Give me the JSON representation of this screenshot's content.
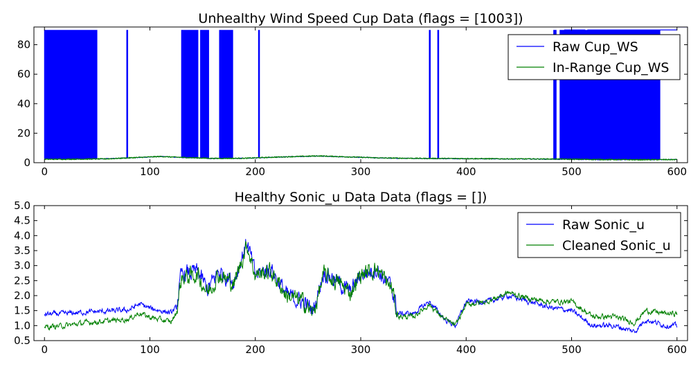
{
  "chart_data": [
    {
      "type": "line",
      "title": "Unhealthy Wind Speed Cup Data (flags = [1003])",
      "xlabel": "",
      "ylabel": "",
      "xlim": [
        -10,
        610
      ],
      "ylim": [
        0,
        92
      ],
      "xticks": [
        0,
        100,
        200,
        300,
        400,
        500,
        600
      ],
      "yticks": [
        0,
        20,
        40,
        60,
        80
      ],
      "legend_position": "top-right",
      "grid": false,
      "series": [
        {
          "name": "Raw Cup_WS",
          "color": "#0000ff",
          "baseline": [
            [
              0,
              2.5
            ],
            [
              50,
              2.5
            ],
            [
              90,
              3.5
            ],
            [
              110,
              4.2
            ],
            [
              130,
              3.5
            ],
            [
              160,
              2.8
            ],
            [
              200,
              3.2
            ],
            [
              230,
              4.0
            ],
            [
              260,
              4.5
            ],
            [
              290,
              3.8
            ],
            [
              330,
              3.0
            ],
            [
              380,
              2.8
            ],
            [
              420,
              2.6
            ],
            [
              460,
              2.5
            ],
            [
              500,
              2.2
            ],
            [
              540,
              2.0
            ],
            [
              580,
              2.1
            ],
            [
              600,
              2.2
            ]
          ],
          "spike_value": 90,
          "spike_ranges": [
            [
              0,
              50
            ],
            [
              78,
              79
            ],
            [
              130,
              146
            ],
            [
              148,
              156
            ],
            [
              166,
              179
            ],
            [
              203,
              204
            ],
            [
              365,
              366
            ],
            [
              373,
              374
            ],
            [
              483,
              486
            ],
            [
              489,
              584
            ]
          ],
          "flat_segments": [
            [
              [
                493,
                90
              ],
              [
                513,
                90
              ]
            ],
            [
              [
                515,
                90
              ],
              [
                600,
                90
              ]
            ],
            [
              [
                600,
                92
              ],
              [
                610,
                92
              ]
            ]
          ]
        },
        {
          "name": "In-Range Cup_WS",
          "color": "#008000",
          "points": [
            [
              0,
              2.3
            ],
            [
              30,
              2.4
            ],
            [
              60,
              2.6
            ],
            [
              90,
              3.6
            ],
            [
              110,
              4.2
            ],
            [
              130,
              3.6
            ],
            [
              160,
              2.9
            ],
            [
              190,
              3.0
            ],
            [
              220,
              3.8
            ],
            [
              260,
              4.6
            ],
            [
              290,
              3.9
            ],
            [
              320,
              3.2
            ],
            [
              360,
              2.9
            ],
            [
              400,
              2.8
            ],
            [
              440,
              2.6
            ],
            [
              480,
              2.5
            ],
            [
              520,
              2.2
            ],
            [
              560,
              2.0
            ],
            [
              600,
              2.1
            ]
          ]
        }
      ]
    },
    {
      "type": "line",
      "title": "Healthy Sonic_u Data Data (flags = [])",
      "xlabel": "",
      "ylabel": "",
      "xlim": [
        -10,
        610
      ],
      "ylim": [
        0.5,
        5.0
      ],
      "xticks": [
        0,
        100,
        200,
        300,
        400,
        500,
        600
      ],
      "yticks": [
        0.5,
        1.0,
        1.5,
        2.0,
        2.5,
        3.0,
        3.5,
        4.0,
        4.5,
        5.0
      ],
      "legend_position": "top-right",
      "grid": false,
      "series": [
        {
          "name": "Raw Sonic_u",
          "color": "#0000ff",
          "points": [
            [
              0,
              1.38
            ],
            [
              20,
              1.4
            ],
            [
              40,
              1.45
            ],
            [
              60,
              1.48
            ],
            [
              80,
              1.52
            ],
            [
              90,
              1.72
            ],
            [
              100,
              1.58
            ],
            [
              120,
              1.42
            ],
            [
              125,
              1.6
            ],
            [
              130,
              2.7
            ],
            [
              145,
              2.8
            ],
            [
              155,
              2.2
            ],
            [
              165,
              2.8
            ],
            [
              180,
              2.5
            ],
            [
              192,
              3.8
            ],
            [
              200,
              2.7
            ],
            [
              215,
              2.9
            ],
            [
              230,
              2.0
            ],
            [
              245,
              1.8
            ],
            [
              255,
              1.5
            ],
            [
              265,
              2.8
            ],
            [
              280,
              2.4
            ],
            [
              290,
              2.1
            ],
            [
              300,
              2.7
            ],
            [
              315,
              2.9
            ],
            [
              330,
              2.2
            ],
            [
              335,
              1.4
            ],
            [
              350,
              1.4
            ],
            [
              365,
              1.8
            ],
            [
              380,
              1.2
            ],
            [
              390,
              1.0
            ],
            [
              400,
              1.8
            ],
            [
              420,
              1.8
            ],
            [
              440,
              2.0
            ],
            [
              460,
              1.8
            ],
            [
              480,
              1.6
            ],
            [
              500,
              1.5
            ],
            [
              520,
              1.0
            ],
            [
              540,
              1.0
            ],
            [
              560,
              0.8
            ],
            [
              570,
              1.2
            ],
            [
              590,
              1.0
            ],
            [
              600,
              1.0
            ]
          ]
        },
        {
          "name": "Cleaned Sonic_u",
          "color": "#008000",
          "points": [
            [
              0,
              0.95
            ],
            [
              20,
              1.0
            ],
            [
              40,
              1.1
            ],
            [
              60,
              1.15
            ],
            [
              80,
              1.22
            ],
            [
              90,
              1.42
            ],
            [
              100,
              1.28
            ],
            [
              120,
              1.12
            ],
            [
              125,
              1.4
            ],
            [
              130,
              2.6
            ],
            [
              145,
              2.7
            ],
            [
              155,
              2.1
            ],
            [
              165,
              2.7
            ],
            [
              180,
              2.4
            ],
            [
              192,
              3.7
            ],
            [
              200,
              2.7
            ],
            [
              215,
              2.8
            ],
            [
              230,
              2.0
            ],
            [
              245,
              1.8
            ],
            [
              255,
              1.4
            ],
            [
              265,
              2.7
            ],
            [
              280,
              2.4
            ],
            [
              290,
              2.1
            ],
            [
              300,
              2.7
            ],
            [
              315,
              2.9
            ],
            [
              330,
              2.2
            ],
            [
              335,
              1.3
            ],
            [
              350,
              1.3
            ],
            [
              365,
              1.7
            ],
            [
              380,
              1.2
            ],
            [
              390,
              1.0
            ],
            [
              400,
              1.7
            ],
            [
              420,
              1.8
            ],
            [
              440,
              2.1
            ],
            [
              460,
              1.9
            ],
            [
              480,
              1.8
            ],
            [
              500,
              1.8
            ],
            [
              520,
              1.3
            ],
            [
              540,
              1.3
            ],
            [
              560,
              1.1
            ],
            [
              570,
              1.5
            ],
            [
              590,
              1.4
            ],
            [
              600,
              1.4
            ]
          ]
        }
      ]
    }
  ]
}
